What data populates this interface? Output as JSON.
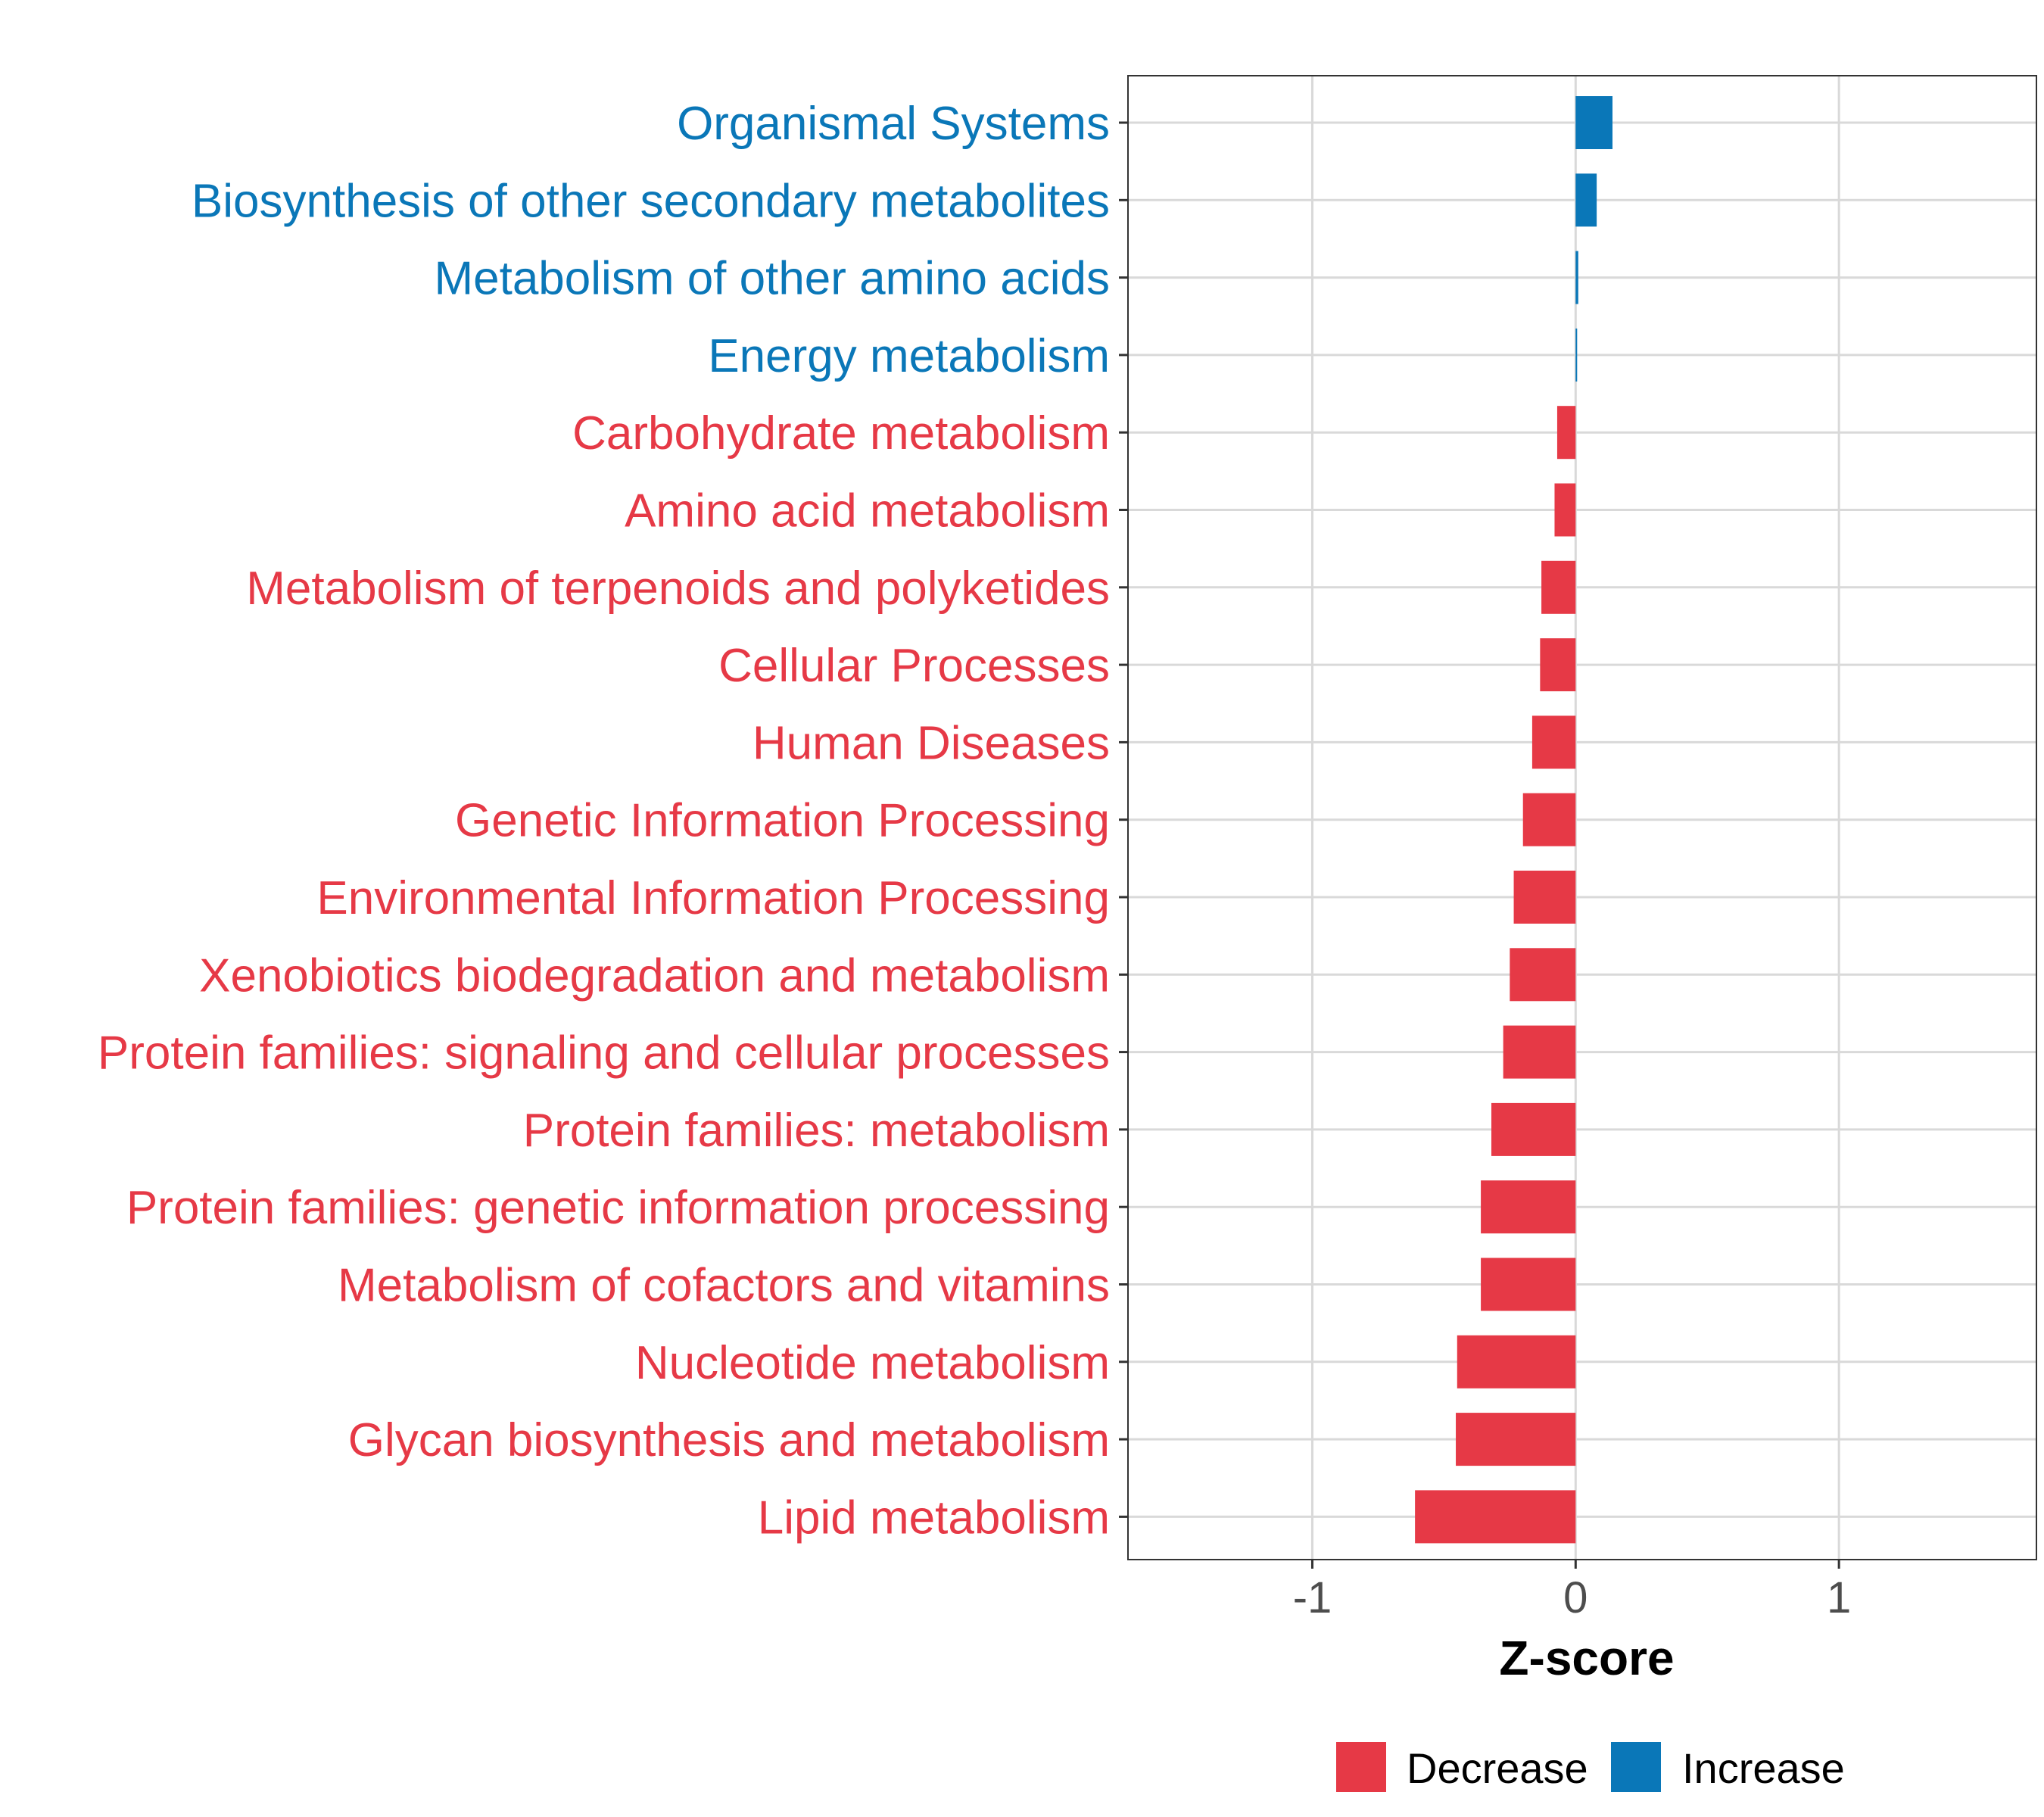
{
  "chart_data": {
    "type": "bar",
    "orientation": "horizontal",
    "title": "",
    "xlabel": "Z-score",
    "ylabel": "",
    "xlim": [
      -1.7,
      1.75
    ],
    "xticks": [
      -1,
      0,
      1
    ],
    "xtick_labels": [
      "-1",
      "0",
      "1"
    ],
    "grid": true,
    "legend_position": "bottom",
    "colors": {
      "Decrease": "#e63946",
      "Increase": "#0a77b8"
    },
    "legend": [
      {
        "name": "Decrease",
        "color": "#e63946"
      },
      {
        "name": "Increase",
        "color": "#0a77b8"
      }
    ],
    "categories": [
      "Organismal Systems",
      "Biosynthesis of other secondary metabolites",
      "Metabolism of other amino acids",
      "Energy metabolism",
      "Carbohydrate metabolism",
      "Amino acid metabolism",
      "Metabolism of terpenoids and polyketides",
      "Cellular Processes",
      "Human Diseases",
      "Genetic Information Processing",
      "Environmental Information Processing",
      "Xenobiotics biodegradation and metabolism",
      "Protein families: signaling and cellular processes",
      "Protein families: metabolism",
      "Protein families: genetic information processing",
      "Metabolism of cofactors and vitamins",
      "Nucleotide metabolism",
      "Glycan biosynthesis and metabolism",
      "Lipid metabolism"
    ],
    "values": [
      0.14,
      0.08,
      0.01,
      0.005,
      -0.07,
      -0.08,
      -0.13,
      -0.135,
      -0.165,
      -0.2,
      -0.235,
      -0.25,
      -0.275,
      -0.32,
      -0.36,
      -0.36,
      -0.45,
      -0.455,
      -0.61
    ],
    "groups": [
      "Increase",
      "Increase",
      "Increase",
      "Increase",
      "Decrease",
      "Decrease",
      "Decrease",
      "Decrease",
      "Decrease",
      "Decrease",
      "Decrease",
      "Decrease",
      "Decrease",
      "Decrease",
      "Decrease",
      "Decrease",
      "Decrease",
      "Decrease",
      "Decrease"
    ]
  }
}
